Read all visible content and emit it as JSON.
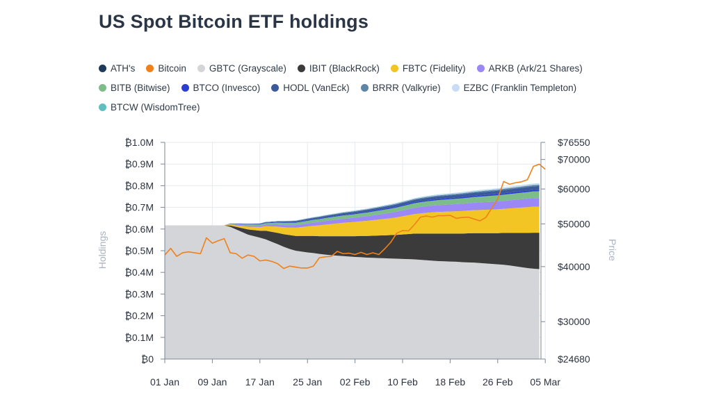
{
  "title": "US Spot Bitcoin ETF holdings",
  "legend": [
    [
      {
        "label": "ATH's",
        "color": "#1f3b5c"
      },
      {
        "label": "Bitcoin",
        "color": "#f08019"
      },
      {
        "label": "GBTC (Grayscale)",
        "color": "#d3d5d8"
      },
      {
        "label": "IBIT (BlackRock)",
        "color": "#3b3b3b"
      },
      {
        "label": "FBTC (Fidelity)",
        "color": "#f2c524"
      },
      {
        "label": "ARKB (Ark/21 Shares)",
        "color": "#9b87f5"
      }
    ],
    [
      {
        "label": "BITB (Bitwise)",
        "color": "#7dbd8a"
      },
      {
        "label": "BTCO (Invesco)",
        "color": "#2c3ed1"
      },
      {
        "label": "HODL (VanEck)",
        "color": "#3a5a9c"
      },
      {
        "label": "BRRR (Valkyrie)",
        "color": "#5b86a6"
      },
      {
        "label": "EZBC (Franklin Templeton)",
        "color": "#c8dcf5"
      }
    ],
    [
      {
        "label": "BTCW (WisdomTree)",
        "color": "#5fbfbf"
      }
    ]
  ],
  "chart_data": {
    "type": "area",
    "title": "US Spot Bitcoin ETF holdings",
    "ylabel": "Holdings",
    "ylabel_right": "Price",
    "ylim": [
      0,
      1000000
    ],
    "ylim_right": [
      24680,
      76550
    ],
    "right_scale": "log",
    "y_ticks": [
      "₿0",
      "₿0.1M",
      "₿0.2M",
      "₿0.3M",
      "₿0.4M",
      "₿0.5M",
      "₿0.6M",
      "₿0.7M",
      "₿0.8M",
      "₿0.9M",
      "₿1.0M"
    ],
    "y_ticks_right": [
      {
        "label": "$24680",
        "value": 24680
      },
      {
        "label": "$30000",
        "value": 30000
      },
      {
        "label": "$40000",
        "value": 40000
      },
      {
        "label": "$50000",
        "value": 50000
      },
      {
        "label": "$60000",
        "value": 60000
      },
      {
        "label": "$70000",
        "value": 70000
      },
      {
        "label": "$76550",
        "value": 76550
      }
    ],
    "x_ticks": [
      "01 Jan",
      "09 Jan",
      "17 Jan",
      "25 Jan",
      "02 Feb",
      "10 Feb",
      "18 Feb",
      "26 Feb",
      "05 Mar"
    ],
    "grid": true,
    "legend_position": "top",
    "x_days": [
      0,
      4,
      8,
      10,
      11,
      12,
      13,
      14,
      16,
      17,
      18,
      19,
      20,
      21,
      22,
      23,
      24,
      25,
      26,
      27,
      28,
      29,
      30,
      31,
      32,
      33,
      34,
      35,
      36,
      37,
      38,
      39,
      40,
      41,
      42,
      43,
      44,
      45,
      46,
      47,
      48,
      49,
      50,
      51,
      52,
      53,
      54,
      55,
      56,
      57,
      58,
      59,
      60,
      61,
      62,
      63
    ],
    "series": [
      {
        "name": "GBTC (Grayscale)",
        "color": "#d3d5d8",
        "values": [
          617000,
          617000,
          617000,
          617000,
          610000,
          598000,
          586000,
          574000,
          560000,
          552000,
          541000,
          530000,
          518000,
          508000,
          500000,
          496000,
          492000,
          489000,
          485000,
          482000,
          479000,
          477000,
          475000,
          473000,
          471000,
          470000,
          468000,
          467000,
          466000,
          465000,
          464000,
          463000,
          462000,
          461000,
          460000,
          458000,
          456000,
          454000,
          452000,
          451000,
          450000,
          449000,
          447000,
          446000,
          445000,
          443000,
          441000,
          439000,
          437000,
          435000,
          432000,
          428000,
          424000,
          420000,
          417000,
          415000
        ]
      },
      {
        "name": "IBIT (BlackRock)",
        "color": "#3b3b3b",
        "values": [
          0,
          0,
          0,
          0,
          6000,
          12000,
          18000,
          24000,
          32000,
          40000,
          46000,
          52000,
          58000,
          64000,
          68000,
          72000,
          76000,
          79000,
          82000,
          85000,
          88000,
          90000,
          92000,
          94000,
          96000,
          98000,
          100000,
          102000,
          104000,
          106000,
          108000,
          110000,
          113000,
          116000,
          119000,
          121000,
          123000,
          125000,
          127000,
          128000,
          129000,
          130000,
          132000,
          134000,
          136000,
          138000,
          140000,
          142000,
          144000,
          147000,
          150000,
          154000,
          158000,
          162000,
          166000,
          168000
        ]
      },
      {
        "name": "FBTC (Fidelity)",
        "color": "#f2c524",
        "values": [
          0,
          0,
          0,
          0,
          4000,
          7000,
          10000,
          13000,
          17000,
          21000,
          25000,
          29000,
          32000,
          35000,
          38000,
          41000,
          44000,
          47000,
          50000,
          53000,
          56000,
          59000,
          62000,
          64000,
          66000,
          68000,
          70000,
          72000,
          74000,
          76000,
          78000,
          81000,
          84000,
          87000,
          90000,
          93000,
          96000,
          98000,
          100000,
          101000,
          102000,
          103000,
          104000,
          105000,
          106000,
          107000,
          108000,
          109000,
          110000,
          111000,
          113000,
          115000,
          117000,
          119000,
          120000,
          120000
        ]
      },
      {
        "name": "ARKB (Ark/21 Shares)",
        "color": "#9b87f5",
        "values": [
          0,
          0,
          0,
          0,
          2000,
          3000,
          4000,
          5000,
          6000,
          7000,
          8000,
          9000,
          10000,
          11000,
          12000,
          13000,
          14000,
          15000,
          16000,
          17000,
          17500,
          18000,
          18500,
          19000,
          19500,
          20000,
          21000,
          22000,
          23000,
          24000,
          25000,
          26000,
          27000,
          28000,
          29000,
          30000,
          30500,
          31000,
          31500,
          32000,
          32500,
          33000,
          33500,
          34000,
          34500,
          35000,
          35500,
          36000,
          36500,
          37000,
          37500,
          38000,
          38500,
          39000,
          39500,
          40000
        ]
      },
      {
        "name": "BITB (Bitwise)",
        "color": "#7dbd8a",
        "values": [
          0,
          0,
          0,
          0,
          2000,
          3000,
          4000,
          5000,
          6000,
          7000,
          8000,
          9000,
          10000,
          10500,
          11000,
          11500,
          12000,
          12500,
          13000,
          13500,
          14000,
          14500,
          15000,
          15500,
          16000,
          16500,
          17000,
          17500,
          18000,
          18500,
          19000,
          19500,
          20000,
          20500,
          21000,
          21500,
          22000,
          22500,
          23000,
          23500,
          24000,
          24500,
          25000,
          25500,
          26000,
          26500,
          27000,
          27500,
          28000,
          28500,
          29000,
          29500,
          30000,
          30500,
          31000,
          31500
        ]
      },
      {
        "name": "BTCO (Invesco)",
        "color": "#2c3ed1",
        "values": [
          0,
          0,
          0,
          0,
          600,
          800,
          1000,
          1200,
          1400,
          1600,
          1800,
          2000,
          2200,
          2400,
          2600,
          2800,
          3000,
          3100,
          3200,
          3300,
          3400,
          3500,
          3600,
          3700,
          3800,
          3900,
          4000,
          4100,
          4200,
          4300,
          4400,
          4500,
          4600,
          4700,
          4800,
          4900,
          5000,
          5100,
          5200,
          5300,
          5400,
          5500,
          5600,
          5700,
          5800,
          5900,
          6000,
          6100,
          6200,
          6300,
          6400,
          6500,
          6600,
          6700,
          6800,
          6900
        ]
      },
      {
        "name": "HODL (VanEck)",
        "color": "#3a5a9c",
        "values": [
          0,
          0,
          0,
          0,
          800,
          1200,
          1600,
          2000,
          2400,
          2800,
          3200,
          3600,
          4000,
          4300,
          4600,
          4900,
          5200,
          5500,
          5800,
          6100,
          6400,
          6700,
          7000,
          7300,
          7600,
          7900,
          8200,
          8500,
          8800,
          9100,
          9400,
          9700,
          10000,
          10300,
          10600,
          10900,
          11200,
          11500,
          11800,
          12100,
          12400,
          12700,
          13000,
          13300,
          13600,
          13900,
          14200,
          14500,
          14800,
          15100,
          15400,
          15700,
          16000,
          16300,
          16600,
          16900
        ]
      },
      {
        "name": "BRRR (Valkyrie)",
        "color": "#5b86a6",
        "values": [
          0,
          0,
          0,
          0,
          400,
          600,
          800,
          1000,
          1200,
          1400,
          1600,
          1800,
          2000,
          2100,
          2200,
          2300,
          2400,
          2500,
          2600,
          2700,
          2800,
          2900,
          3000,
          3100,
          3200,
          3300,
          3400,
          3500,
          3600,
          3700,
          3800,
          3900,
          4000,
          4100,
          4200,
          4300,
          4400,
          4500,
          4600,
          4700,
          4800,
          4900,
          5000,
          5100,
          5200,
          5300,
          5400,
          5500,
          5600,
          5700,
          5800,
          5900,
          6000,
          6100,
          6200,
          6300
        ]
      },
      {
        "name": "EZBC (Franklin Templeton)",
        "color": "#c8dcf5",
        "values": [
          0,
          0,
          0,
          0,
          200,
          300,
          400,
          500,
          600,
          700,
          800,
          900,
          1000,
          1100,
          1200,
          1300,
          1400,
          1500,
          1600,
          1700,
          1800,
          1900,
          2000,
          2100,
          2200,
          2300,
          2400,
          2500,
          2600,
          2700,
          2800,
          2900,
          3000,
          3100,
          3200,
          3300,
          3400,
          3500,
          3600,
          3700,
          3800,
          3900,
          4000,
          4100,
          4200,
          4300,
          4400,
          4500,
          4600,
          4700,
          4800,
          4900,
          5000,
          5100,
          5200,
          5300
        ]
      },
      {
        "name": "BTCW (WisdomTree)",
        "color": "#5fbfbf",
        "values": [
          0,
          0,
          0,
          0,
          50,
          80,
          100,
          120,
          140,
          160,
          180,
          200,
          220,
          240,
          260,
          280,
          300,
          320,
          340,
          360,
          380,
          400,
          420,
          440,
          460,
          480,
          500,
          520,
          540,
          560,
          580,
          600,
          620,
          640,
          660,
          680,
          700,
          720,
          740,
          760,
          780,
          800,
          820,
          840,
          860,
          880,
          900,
          920,
          940,
          960,
          980,
          1000,
          1020,
          1040,
          1060,
          1080
        ]
      }
    ],
    "price_series": {
      "name": "Bitcoin",
      "color": "#f08019",
      "x_days": [
        0,
        1,
        2,
        3,
        4,
        5,
        6,
        7,
        8,
        9,
        10,
        11,
        12,
        13,
        14,
        15,
        16,
        17,
        18,
        19,
        20,
        21,
        22,
        23,
        24,
        25,
        26,
        27,
        28,
        29,
        30,
        31,
        32,
        33,
        34,
        35,
        36,
        37,
        38,
        39,
        40,
        41,
        42,
        43,
        44,
        45,
        46,
        47,
        48,
        49,
        50,
        51,
        52,
        53,
        54,
        55,
        56,
        57,
        58,
        59,
        60,
        61,
        62,
        63,
        64
      ],
      "values": [
        42500,
        44000,
        42200,
        43000,
        43200,
        43000,
        42800,
        46500,
        45200,
        45800,
        46300,
        43000,
        42800,
        41800,
        42500,
        42200,
        41200,
        41400,
        41100,
        40600,
        39600,
        40100,
        39900,
        39700,
        39700,
        40100,
        41900,
        42100,
        42200,
        43300,
        42800,
        42900,
        42600,
        43100,
        42600,
        43000,
        42600,
        43900,
        45400,
        47600,
        48300,
        48200,
        49800,
        51800,
        52100,
        51800,
        52200,
        52200,
        52300,
        51500,
        51700,
        51800,
        51300,
        50800,
        51700,
        54300,
        57000,
        62400,
        61500,
        62000,
        62300,
        63000,
        67500,
        68300,
        66500
      ]
    }
  }
}
